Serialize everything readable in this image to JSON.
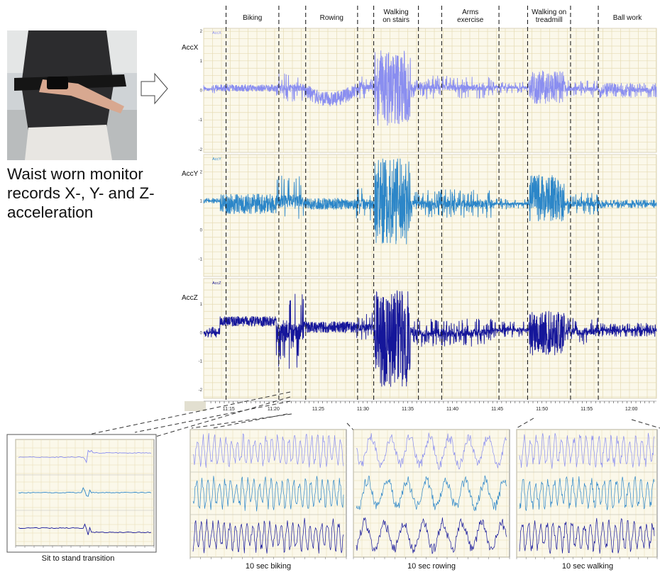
{
  "photo": {
    "description_label": "waist-worn-monitor-photo"
  },
  "waist_text": "Waist worn monitor records X-, Y- and Z- acceleration",
  "colors": {
    "x": "#8a8ef0",
    "y": "#2c86c8",
    "z": "#15169a",
    "grid": "#e6dcb4",
    "panel": "#fbf8ea"
  },
  "chart_data": [
    {
      "type": "line",
      "title": "",
      "activities": [
        "Biking",
        "Rowing",
        "Walking on stairs",
        "Arms exercise",
        "Walking on treadmill",
        "Ball work"
      ],
      "activity_lines": [
        [
          "Biking"
        ],
        [
          "Rowing"
        ],
        [
          "Walking",
          "on stairs"
        ],
        [
          "Arms",
          "exercise"
        ],
        [
          "Walking on",
          "treadmill"
        ],
        [
          "Ball work"
        ]
      ],
      "x_ticks": [
        "11:15",
        "11:20",
        "11:25",
        "11:30",
        "11:35",
        "11:40",
        "11:45",
        "11:50",
        "11:55",
        "12:00"
      ],
      "x_range_minutes": [
        12.2,
        62.8
      ],
      "boundaries_minutes": [
        14.7,
        20.6,
        23.6,
        29.4,
        31.2,
        36.2,
        38.8,
        45.2,
        48.4,
        53.2,
        56.3,
        63.2
      ],
      "series": [
        {
          "name": "AccX",
          "legend": "AccX",
          "ylim": [
            -2.1,
            2.1
          ],
          "yticks": [
            "2",
            "1",
            "0",
            "-1",
            "-2"
          ]
        },
        {
          "name": "AccY",
          "legend": "AccY",
          "ylim": [
            -1.6,
            2.6
          ],
          "yticks": [
            "2",
            "1",
            "0",
            "-1"
          ]
        },
        {
          "name": "AccZ",
          "legend": "AccZ",
          "ylim": [
            -2.3,
            1.9
          ],
          "yticks": [
            "1",
            "0",
            "-1",
            "-2"
          ]
        }
      ]
    },
    {
      "type": "line",
      "title": "",
      "caption": "Sit to stand transition",
      "series": [
        "x",
        "y",
        "z"
      ]
    },
    {
      "type": "line",
      "title": "",
      "caption": "10 sec biking",
      "series": [
        "x",
        "y",
        "z"
      ]
    },
    {
      "type": "line",
      "title": "",
      "caption": "10 sec rowing",
      "series": [
        "x",
        "y",
        "z"
      ]
    },
    {
      "type": "line",
      "title": "",
      "caption": "10 sec walking",
      "series": [
        "x",
        "y",
        "z"
      ]
    }
  ]
}
